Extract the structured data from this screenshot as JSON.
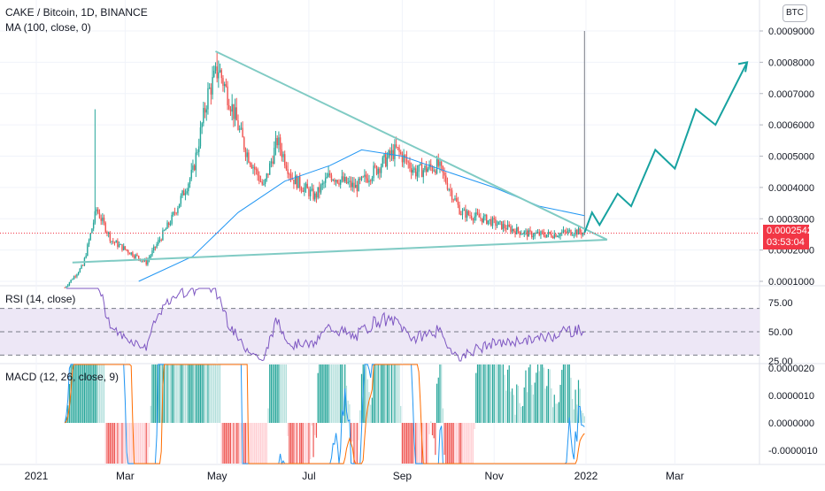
{
  "header": {
    "symbol_line": "CAKE / Bitcoin, 1D, BINANCE",
    "ma_line": "MA (100, close, 0)",
    "currency_button": "BTC"
  },
  "price_badge": {
    "price": "0.0002542",
    "countdown": "03:53:04"
  },
  "panes": {
    "rsi_title": "RSI (14, close)",
    "macd_title": "MACD (12, 26, close, 9)"
  },
  "colors": {
    "up": "#26a69a",
    "down": "#ef5350",
    "ma": "#2196f3",
    "trendline": "#80cbc4",
    "projection": "#17a2a0",
    "rsi": "#7e57c2",
    "rsi_band": "#ede7f6",
    "macd_line": "#2196f3",
    "signal_line": "#ff6d00",
    "last_price": "#f23645"
  },
  "chart_data": [
    {
      "type": "candlestick",
      "title": "CAKE / Bitcoin, 1D, BINANCE",
      "x_ticks": [
        "2021",
        "Mar",
        "May",
        "Jul",
        "Sep",
        "Nov",
        "2022",
        "Mar"
      ],
      "y_ticks": [
        "0.0009000",
        "0.0008000",
        "0.0007000",
        "0.0006000",
        "0.0005000",
        "0.0004000",
        "0.0003000",
        "0.0002000",
        "0.0001000"
      ],
      "ylim": [
        7e-05,
        0.00096
      ],
      "last_price": 0.0002542,
      "approx_close_path": [
        {
          "date": "2021-01-20",
          "close": 8e-05
        },
        {
          "date": "2021-02-01",
          "close": 0.00015
        },
        {
          "date": "2021-02-10",
          "close": 0.00033
        },
        {
          "date": "2021-02-20",
          "close": 0.00023
        },
        {
          "date": "2021-03-05",
          "close": 0.00019
        },
        {
          "date": "2021-03-15",
          "close": 0.00016
        },
        {
          "date": "2021-04-01",
          "close": 0.0003
        },
        {
          "date": "2021-04-15",
          "close": 0.00045
        },
        {
          "date": "2021-04-25",
          "close": 0.0007
        },
        {
          "date": "2021-05-02",
          "close": 0.00078
        },
        {
          "date": "2021-05-10",
          "close": 0.00067
        },
        {
          "date": "2021-05-20",
          "close": 0.00052
        },
        {
          "date": "2021-06-01",
          "close": 0.0004
        },
        {
          "date": "2021-06-10",
          "close": 0.00055
        },
        {
          "date": "2021-06-20",
          "close": 0.00043
        },
        {
          "date": "2021-07-05",
          "close": 0.00037
        },
        {
          "date": "2021-07-15",
          "close": 0.00044
        },
        {
          "date": "2021-08-01",
          "close": 0.0004
        },
        {
          "date": "2021-08-15",
          "close": 0.00046
        },
        {
          "date": "2021-08-28",
          "close": 0.00052
        },
        {
          "date": "2021-09-10",
          "close": 0.00045
        },
        {
          "date": "2021-09-25",
          "close": 0.00047
        },
        {
          "date": "2021-10-10",
          "close": 0.00032
        },
        {
          "date": "2021-10-25",
          "close": 0.0003
        },
        {
          "date": "2021-11-10",
          "close": 0.00027
        },
        {
          "date": "2021-11-25",
          "close": 0.00025
        },
        {
          "date": "2021-12-10",
          "close": 0.00025
        },
        {
          "date": "2021-12-25",
          "close": 0.00026
        },
        {
          "date": "2021-12-31",
          "close": 0.0002542
        }
      ],
      "ma_path": [
        {
          "date": "2021-03-10",
          "value": 0.0001
        },
        {
          "date": "2021-04-15",
          "value": 0.00018
        },
        {
          "date": "2021-05-15",
          "value": 0.00032
        },
        {
          "date": "2021-06-15",
          "value": 0.00042
        },
        {
          "date": "2021-07-15",
          "value": 0.00047
        },
        {
          "date": "2021-08-05",
          "value": 0.00052
        },
        {
          "date": "2021-09-01",
          "value": 0.0005
        },
        {
          "date": "2021-10-01",
          "value": 0.00045
        },
        {
          "date": "2021-11-01",
          "value": 0.0004
        },
        {
          "date": "2021-12-01",
          "value": 0.00034
        },
        {
          "date": "2021-12-31",
          "value": 0.00031
        }
      ]
    },
    {
      "type": "line",
      "title": "RSI (14, close)",
      "y_ticks": [
        "75.00",
        "50.00",
        "25.00"
      ],
      "band": [
        30,
        70
      ]
    },
    {
      "type": "bar",
      "title": "MACD (12, 26, close, 9)",
      "y_ticks": [
        "0.0000020",
        "0.0000010",
        "0.0000000",
        "-0.0000010"
      ]
    }
  ]
}
